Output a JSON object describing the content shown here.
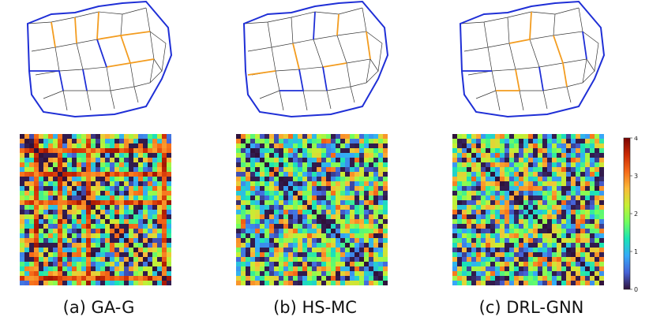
{
  "panels": [
    {
      "caption": "(a) GA-G"
    },
    {
      "caption": "(b) HS-MC"
    },
    {
      "caption": "(c) DRL-GNN"
    }
  ],
  "colorbar": {
    "ticks": [
      "0",
      "1",
      "2",
      "3",
      "4"
    ],
    "range": [
      0,
      4
    ],
    "colors": [
      "#30123b",
      "#4662d7",
      "#36aaf9",
      "#1ae4b6",
      "#72fe5e",
      "#c7ef34",
      "#faba39",
      "#f66b19",
      "#cb2a04",
      "#7a0403"
    ]
  },
  "colors": {
    "mesh_boundary": "#1f2fd6",
    "mesh_cut": "#f39c1f",
    "mesh_edge": "#333333"
  }
}
